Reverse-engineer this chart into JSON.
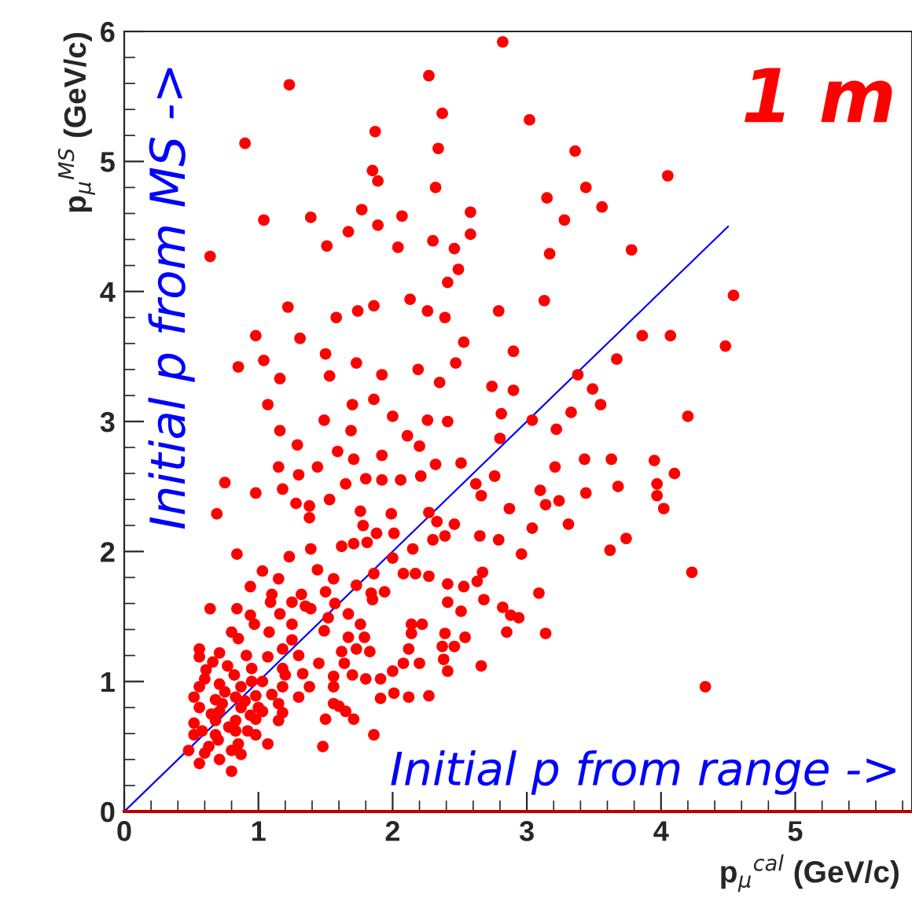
{
  "chart_data": {
    "type": "scatter",
    "xlabel": "p$_{μ}$$^{cal}$ (GeV/c)",
    "ylabel": "p$_{μ}$$^{MS}$ (GeV/c)",
    "annotations": [
      "1 m",
      "Initial p from MS ->",
      "Initial p from range ->"
    ],
    "xlim": [
      0,
      5.87
    ],
    "ylim": [
      0,
      6
    ],
    "xticks": [
      0,
      1,
      2,
      3,
      4,
      5
    ],
    "yticks": [
      0,
      1,
      2,
      3,
      4,
      5,
      6
    ],
    "grid": false,
    "marker": "circle",
    "series": [
      {
        "color": "#ff0000",
        "x": [
          2.82,
          1.23,
          2.27,
          0.9,
          2.37,
          3.02,
          1.87,
          2.34,
          3.36,
          4.05,
          1.85,
          1.89,
          2.32,
          3.44,
          3.15,
          3.56,
          1.04,
          1.39,
          1.77,
          2.07,
          2.58,
          3.28,
          0.64,
          1.51,
          1.67,
          1.89,
          2.04,
          2.3,
          2.46,
          2.58,
          2.49,
          2.41,
          3.17,
          3.78,
          4.54,
          1.22,
          2.13,
          1.86,
          1.74,
          1.58,
          2.26,
          2.39,
          2.79,
          3.13,
          0.98,
          1.31,
          1.5,
          1.04,
          0.85,
          1.16,
          1.53,
          1.73,
          1.92,
          2.19,
          2.35,
          2.47,
          2.53,
          2.9,
          3.67,
          3.86,
          4.07,
          4.48,
          2.74,
          2.9,
          3.38,
          3.49,
          1.07,
          1.7,
          1.86,
          1.49,
          2.0,
          2.26,
          2.41,
          2.81,
          3.33,
          3.55,
          4.2,
          1.16,
          1.69,
          2.11,
          2.8,
          3.22,
          1.29,
          1.59,
          2.2,
          3.04,
          1.15,
          1.44,
          1.71,
          1.92,
          2.32,
          2.51,
          3.43,
          3.63,
          3.95,
          4.1,
          3.21,
          0.75,
          1.3,
          1.8,
          1.92,
          2.06,
          2.21,
          2.76,
          1.18,
          1.65,
          2.62,
          0.98,
          1.28,
          1.53,
          1.38,
          2.66,
          3.1,
          3.44,
          3.68,
          3.97,
          3.97,
          0.69,
          1.38,
          1.76,
          1.99,
          2.27,
          2.87,
          3.14,
          3.24,
          4.02,
          2.33,
          2.46,
          3.31,
          1.78,
          2.01,
          1.88,
          2.3,
          2.39,
          2.65,
          2.79,
          3.04,
          3.74,
          1.62,
          1.71,
          1.81,
          2.15,
          2.96,
          3.62,
          0.84,
          1.39,
          1.23,
          2.0,
          1.03,
          1.44,
          2.08,
          2.17,
          2.27,
          2.67,
          4.23,
          1.15,
          1.56,
          1.73,
          1.86,
          2.41,
          2.53,
          2.63,
          0.94,
          1.1,
          1.32,
          1.5,
          1.84,
          1.94,
          3.09,
          2.41,
          2.68,
          0.64,
          0.84,
          1.09,
          1.25,
          1.35,
          1.57,
          1.85,
          2.82,
          0.94,
          1.16,
          1.39,
          1.52,
          1.67,
          2.51,
          2.88,
          2.94,
          0.97,
          1.25,
          1.76,
          2.14,
          2.22,
          0.8,
          1.08,
          1.49,
          2.14,
          2.39,
          2.85,
          3.14,
          0.85,
          1.25,
          1.67,
          1.79,
          2.54,
          0.56,
          1.18,
          1.62,
          1.73,
          1.83,
          2.12,
          2.37,
          2.46,
          0.56,
          0.71,
          0.91,
          1.07,
          1.3,
          1.45,
          1.64,
          2.08,
          2.2,
          2.38,
          2.66,
          0.61,
          0.77,
          0.95,
          1.18,
          1.33,
          1.56,
          1.7,
          1.8,
          1.91,
          2.0,
          2.41,
          0.56,
          0.71,
          0.87,
          1.03,
          1.18,
          1.38,
          1.56,
          4.33,
          0.52,
          0.68,
          0.83,
          0.98,
          1.15,
          1.3,
          1.56,
          2.01,
          2.12,
          2.27,
          1.91,
          0.56,
          0.71,
          0.87,
          1.03,
          1.18,
          1.6,
          1.65,
          0.52,
          0.68,
          0.83,
          0.98,
          1.15,
          1.5,
          1.71,
          0.52,
          0.68,
          0.83,
          0.98,
          1.86,
          0.48,
          0.63,
          0.8,
          1.07,
          1.48,
          0.56,
          0.71,
          0.8,
          0.87,
          0.6,
          0.75,
          0.9,
          0.65,
          0.78,
          0.92,
          0.7,
          0.85,
          0.6,
          1.0,
          0.95,
          1.1,
          0.66,
          0.82,
          1.2,
          0.73,
          0.58,
          0.94
        ],
        "values": [
          5.92,
          5.59,
          5.66,
          5.14,
          5.37,
          5.32,
          5.23,
          5.1,
          5.08,
          4.89,
          4.93,
          4.85,
          4.8,
          4.8,
          4.72,
          4.65,
          4.55,
          4.57,
          4.63,
          4.58,
          4.61,
          4.55,
          4.27,
          4.35,
          4.46,
          4.51,
          4.34,
          4.39,
          4.33,
          4.44,
          4.17,
          4.07,
          4.29,
          4.32,
          3.97,
          3.88,
          3.94,
          3.89,
          3.85,
          3.8,
          3.85,
          3.8,
          3.85,
          3.93,
          3.66,
          3.64,
          3.52,
          3.47,
          3.42,
          3.33,
          3.35,
          3.45,
          3.36,
          3.4,
          3.3,
          3.45,
          3.61,
          3.54,
          3.48,
          3.66,
          3.66,
          3.58,
          3.27,
          3.24,
          3.36,
          3.25,
          3.13,
          3.13,
          3.17,
          3.01,
          3.04,
          3.01,
          3.0,
          3.06,
          3.07,
          3.13,
          3.04,
          2.93,
          2.93,
          2.89,
          2.87,
          2.94,
          2.82,
          2.77,
          2.81,
          3.01,
          2.65,
          2.65,
          2.71,
          2.74,
          2.67,
          2.68,
          2.71,
          2.71,
          2.7,
          2.6,
          2.65,
          2.53,
          2.59,
          2.56,
          2.55,
          2.55,
          2.58,
          2.58,
          2.48,
          2.52,
          2.52,
          2.45,
          2.37,
          2.4,
          2.35,
          2.43,
          2.47,
          2.45,
          2.5,
          2.52,
          2.43,
          2.29,
          2.26,
          2.31,
          2.29,
          2.3,
          2.33,
          2.36,
          2.39,
          2.33,
          2.23,
          2.21,
          2.21,
          2.2,
          2.14,
          2.14,
          2.09,
          2.12,
          2.12,
          2.09,
          2.18,
          2.1,
          2.04,
          2.06,
          2.07,
          2.02,
          1.98,
          2.01,
          1.98,
          2.02,
          1.96,
          1.95,
          1.85,
          1.86,
          1.83,
          1.83,
          1.81,
          1.84,
          1.84,
          1.79,
          1.79,
          1.74,
          1.83,
          1.75,
          1.73,
          1.77,
          1.73,
          1.67,
          1.67,
          1.69,
          1.68,
          1.69,
          1.68,
          1.61,
          1.63,
          1.56,
          1.56,
          1.61,
          1.61,
          1.58,
          1.6,
          1.63,
          1.57,
          1.51,
          1.52,
          1.56,
          1.49,
          1.52,
          1.54,
          1.51,
          1.49,
          1.44,
          1.44,
          1.44,
          1.44,
          1.44,
          1.38,
          1.38,
          1.39,
          1.37,
          1.37,
          1.38,
          1.37,
          1.33,
          1.32,
          1.34,
          1.34,
          1.34,
          1.25,
          1.25,
          1.23,
          1.25,
          1.23,
          1.25,
          1.27,
          1.27,
          1.19,
          1.22,
          1.2,
          1.19,
          1.2,
          1.14,
          1.14,
          1.14,
          1.14,
          1.17,
          1.12,
          1.09,
          1.12,
          1.1,
          1.1,
          1.06,
          1.04,
          1.05,
          1.02,
          1.02,
          1.08,
          1.08,
          0.96,
          0.98,
          0.96,
          1.0,
          0.96,
          0.96,
          0.96,
          0.96,
          0.88,
          0.86,
          0.88,
          0.89,
          0.83,
          0.88,
          0.83,
          0.91,
          0.88,
          0.89,
          0.87,
          0.8,
          0.77,
          0.8,
          0.77,
          0.76,
          0.81,
          0.77,
          0.68,
          0.7,
          0.7,
          0.71,
          0.7,
          0.71,
          0.71,
          0.59,
          0.59,
          0.62,
          0.59,
          0.59,
          0.47,
          0.5,
          0.47,
          0.52,
          0.5,
          0.37,
          0.4,
          0.31,
          0.44,
          1.02,
          0.92,
          0.85,
          0.75,
          0.65,
          0.62,
          0.55,
          0.52,
          0.45,
          0.8,
          1.0,
          0.9,
          1.15,
          1.05,
          1.05,
          0.83,
          0.62,
          0.74
        ]
      },
      {
        "color": "#0000ff",
        "type": "line",
        "marker": "none",
        "x": [
          0,
          4.5
        ],
        "values": [
          0,
          4.5
        ]
      }
    ]
  }
}
